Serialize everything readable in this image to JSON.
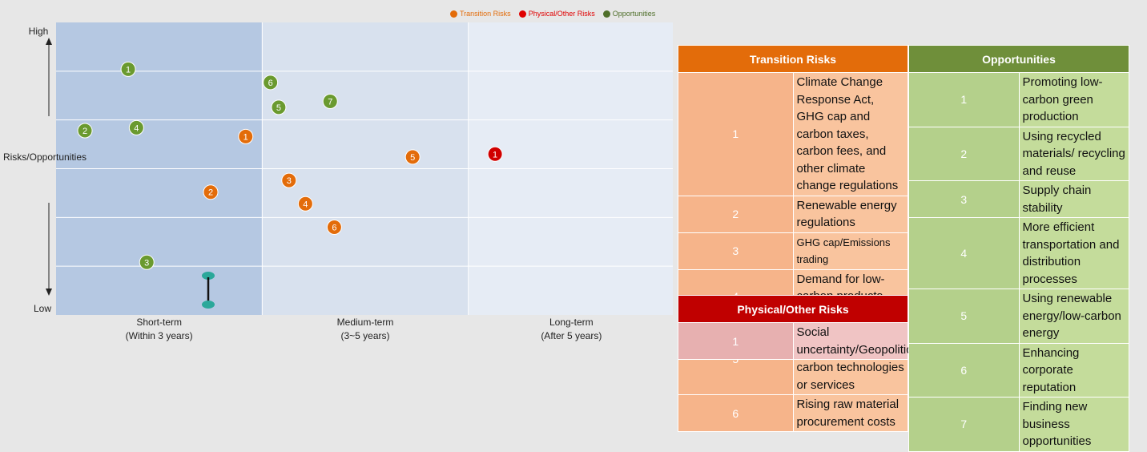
{
  "legend": [
    {
      "label": "Transition Risks",
      "color": "#e36c0a"
    },
    {
      "label": "Physical/Other Risks",
      "color": "#e00000"
    },
    {
      "label": "Opportunities",
      "color": "#4f6f2a"
    }
  ],
  "chart_data": {
    "type": "scatter",
    "ylabel": "Risks/Opportunities",
    "y_high_label": "High",
    "y_low_label": "Low",
    "columns": [
      {
        "label": "Short-term",
        "sub": "(Within 3 years)",
        "color": "#b5c8e2"
      },
      {
        "label": "Medium-term",
        "sub": "(3~5 years)",
        "color": "#d8e1ee"
      },
      {
        "label": "Long-term",
        "sub": "(After 5 years)",
        "color": "#e6ecf5"
      }
    ],
    "x_range": [
      0,
      3
    ],
    "y_range": [
      0,
      100
    ],
    "points": [
      {
        "label": "1",
        "category": "Opportunities",
        "x": 0.35,
        "y": 84,
        "color": "#6a9a2f"
      },
      {
        "label": "6",
        "category": "Opportunities",
        "x": 1.04,
        "y": 79.5,
        "color": "#6a9a2f"
      },
      {
        "label": "5",
        "category": "Opportunities",
        "x": 1.08,
        "y": 71,
        "color": "#6a9a2f"
      },
      {
        "label": "7",
        "category": "Opportunities",
        "x": 1.33,
        "y": 73,
        "color": "#6a9a2f"
      },
      {
        "label": "2",
        "category": "Opportunities",
        "x": 0.14,
        "y": 63,
        "color": "#6a9a2f"
      },
      {
        "label": "4",
        "category": "Opportunities",
        "x": 0.39,
        "y": 64,
        "color": "#6a9a2f"
      },
      {
        "label": "1",
        "category": "Transition Risks",
        "x": 0.92,
        "y": 61,
        "color": "#e36c0a"
      },
      {
        "label": "5",
        "category": "Transition Risks",
        "x": 1.73,
        "y": 54,
        "color": "#e36c0a"
      },
      {
        "label": "1",
        "category": "Physical/Other Risks",
        "x": 2.13,
        "y": 55,
        "color": "#d00000"
      },
      {
        "label": "3",
        "category": "Transition Risks",
        "x": 1.13,
        "y": 46,
        "color": "#e36c0a"
      },
      {
        "label": "2",
        "category": "Transition Risks",
        "x": 0.75,
        "y": 42,
        "color": "#e36c0a"
      },
      {
        "label": "4",
        "category": "Transition Risks",
        "x": 1.21,
        "y": 38,
        "color": "#e36c0a"
      },
      {
        "label": "6",
        "category": "Transition Risks",
        "x": 1.35,
        "y": 30,
        "color": "#e36c0a"
      },
      {
        "label": "3",
        "category": "Opportunities",
        "x": 0.44,
        "y": 18,
        "color": "#6a9a2f"
      }
    ],
    "grid_rows": 6,
    "grid": true
  },
  "tables": {
    "transition": {
      "title": "Transition Risks",
      "color": "#e36c0a",
      "rows": [
        {
          "n": "1",
          "text": "Climate Change Response Act, GHG cap and carbon taxes, carbon fees, and other climate change regulations"
        },
        {
          "n": "2",
          "text": "Renewable energy regulations"
        },
        {
          "n": "3",
          "text": "GHG cap/Emissions trading"
        },
        {
          "n": "4",
          "text": "Demand for low-carbon products and services"
        },
        {
          "n": "5",
          "text": "Transformation to innovative low-carbon technologies or services"
        },
        {
          "n": "6",
          "text": "Rising raw material procurement costs"
        }
      ]
    },
    "opportunities": {
      "title": "Opportunities",
      "color": "#6f8f3a",
      "rows": [
        {
          "n": "1",
          "text": "Promoting low-carbon green production"
        },
        {
          "n": "2",
          "text": "Using recycled materials/ recycling and reuse"
        },
        {
          "n": "3",
          "text": "Supply chain stability"
        },
        {
          "n": "4",
          "text": "More efficient transportation and distribution processes"
        },
        {
          "n": "5",
          "text": "Using renewable energy/low-carbon energy"
        },
        {
          "n": "6",
          "text": "Enhancing corporate reputation"
        },
        {
          "n": "7",
          "text": "Finding new business opportunities"
        }
      ]
    },
    "physical": {
      "title": "Physical/Other Risks",
      "color": "#c00000",
      "rows": [
        {
          "n": "1",
          "text": "Social uncertainty/Geopolitics"
        }
      ]
    }
  }
}
